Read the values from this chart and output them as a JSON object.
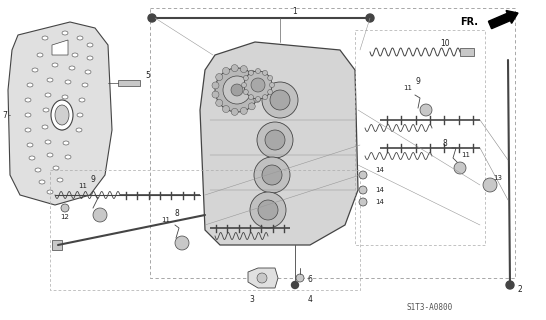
{
  "bg_color": "#ffffff",
  "line_color": "#444444",
  "diagram_code": "S1T3-A0800",
  "fr_label": "FR.",
  "label_color": "#222222",
  "gray_fill": "#c8c8c8",
  "light_fill": "#e0e0e0",
  "white_fill": "#ffffff"
}
